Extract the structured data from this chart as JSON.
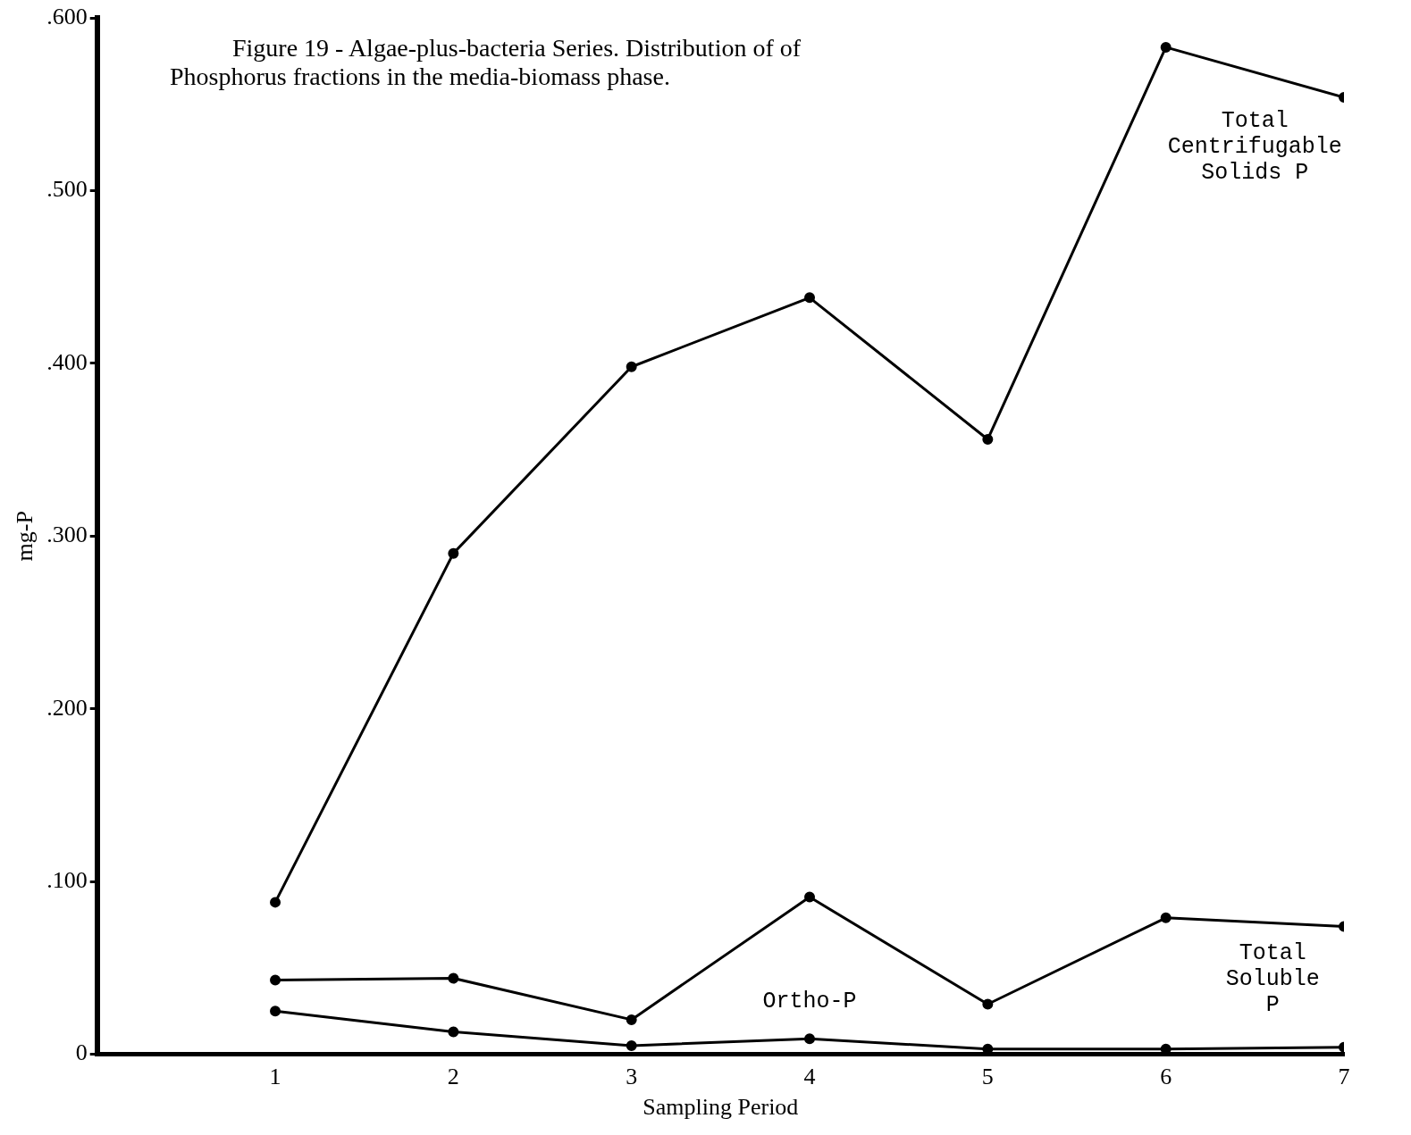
{
  "chart_data": {
    "type": "line",
    "title": "Figure 19 -  Algae-plus-bacteria Series.  Distribution of of Phosphorus fractions in the media-biomass phase.",
    "xlabel": "Sampling Period",
    "ylabel": "mg-P",
    "x": [
      1,
      2,
      3,
      4,
      5,
      6,
      7
    ],
    "series": [
      {
        "name": "Total Centrifugable Solids P",
        "color": "#000000",
        "values": [
          0.088,
          0.29,
          0.398,
          0.438,
          0.356,
          0.583,
          0.554
        ]
      },
      {
        "name": "Total Soluble P",
        "color": "#000000",
        "values": [
          0.043,
          0.044,
          0.02,
          0.091,
          0.029,
          0.079,
          0.074
        ]
      },
      {
        "name": "Ortho-P",
        "color": "#000000",
        "values": [
          0.025,
          0.013,
          0.005,
          0.009,
          0.003,
          0.003,
          0.004
        ]
      }
    ],
    "xlim": [
      0,
      7
    ],
    "xticks": [
      1,
      2,
      3,
      4,
      5,
      6,
      7
    ],
    "ylim": [
      0,
      0.6
    ],
    "yticks": [
      {
        "value": 0,
        "label": "0"
      },
      {
        "value": 0.1,
        "label": ".100"
      },
      {
        "value": 0.2,
        "label": ".200"
      },
      {
        "value": 0.3,
        "label": ".300"
      },
      {
        "value": 0.4,
        "label": ".400"
      },
      {
        "value": 0.5,
        "label": ".500"
      },
      {
        "value": 0.6,
        "label": ".600"
      }
    ],
    "grid": false,
    "legend": false,
    "marker": "circle",
    "line_style": "solid"
  }
}
